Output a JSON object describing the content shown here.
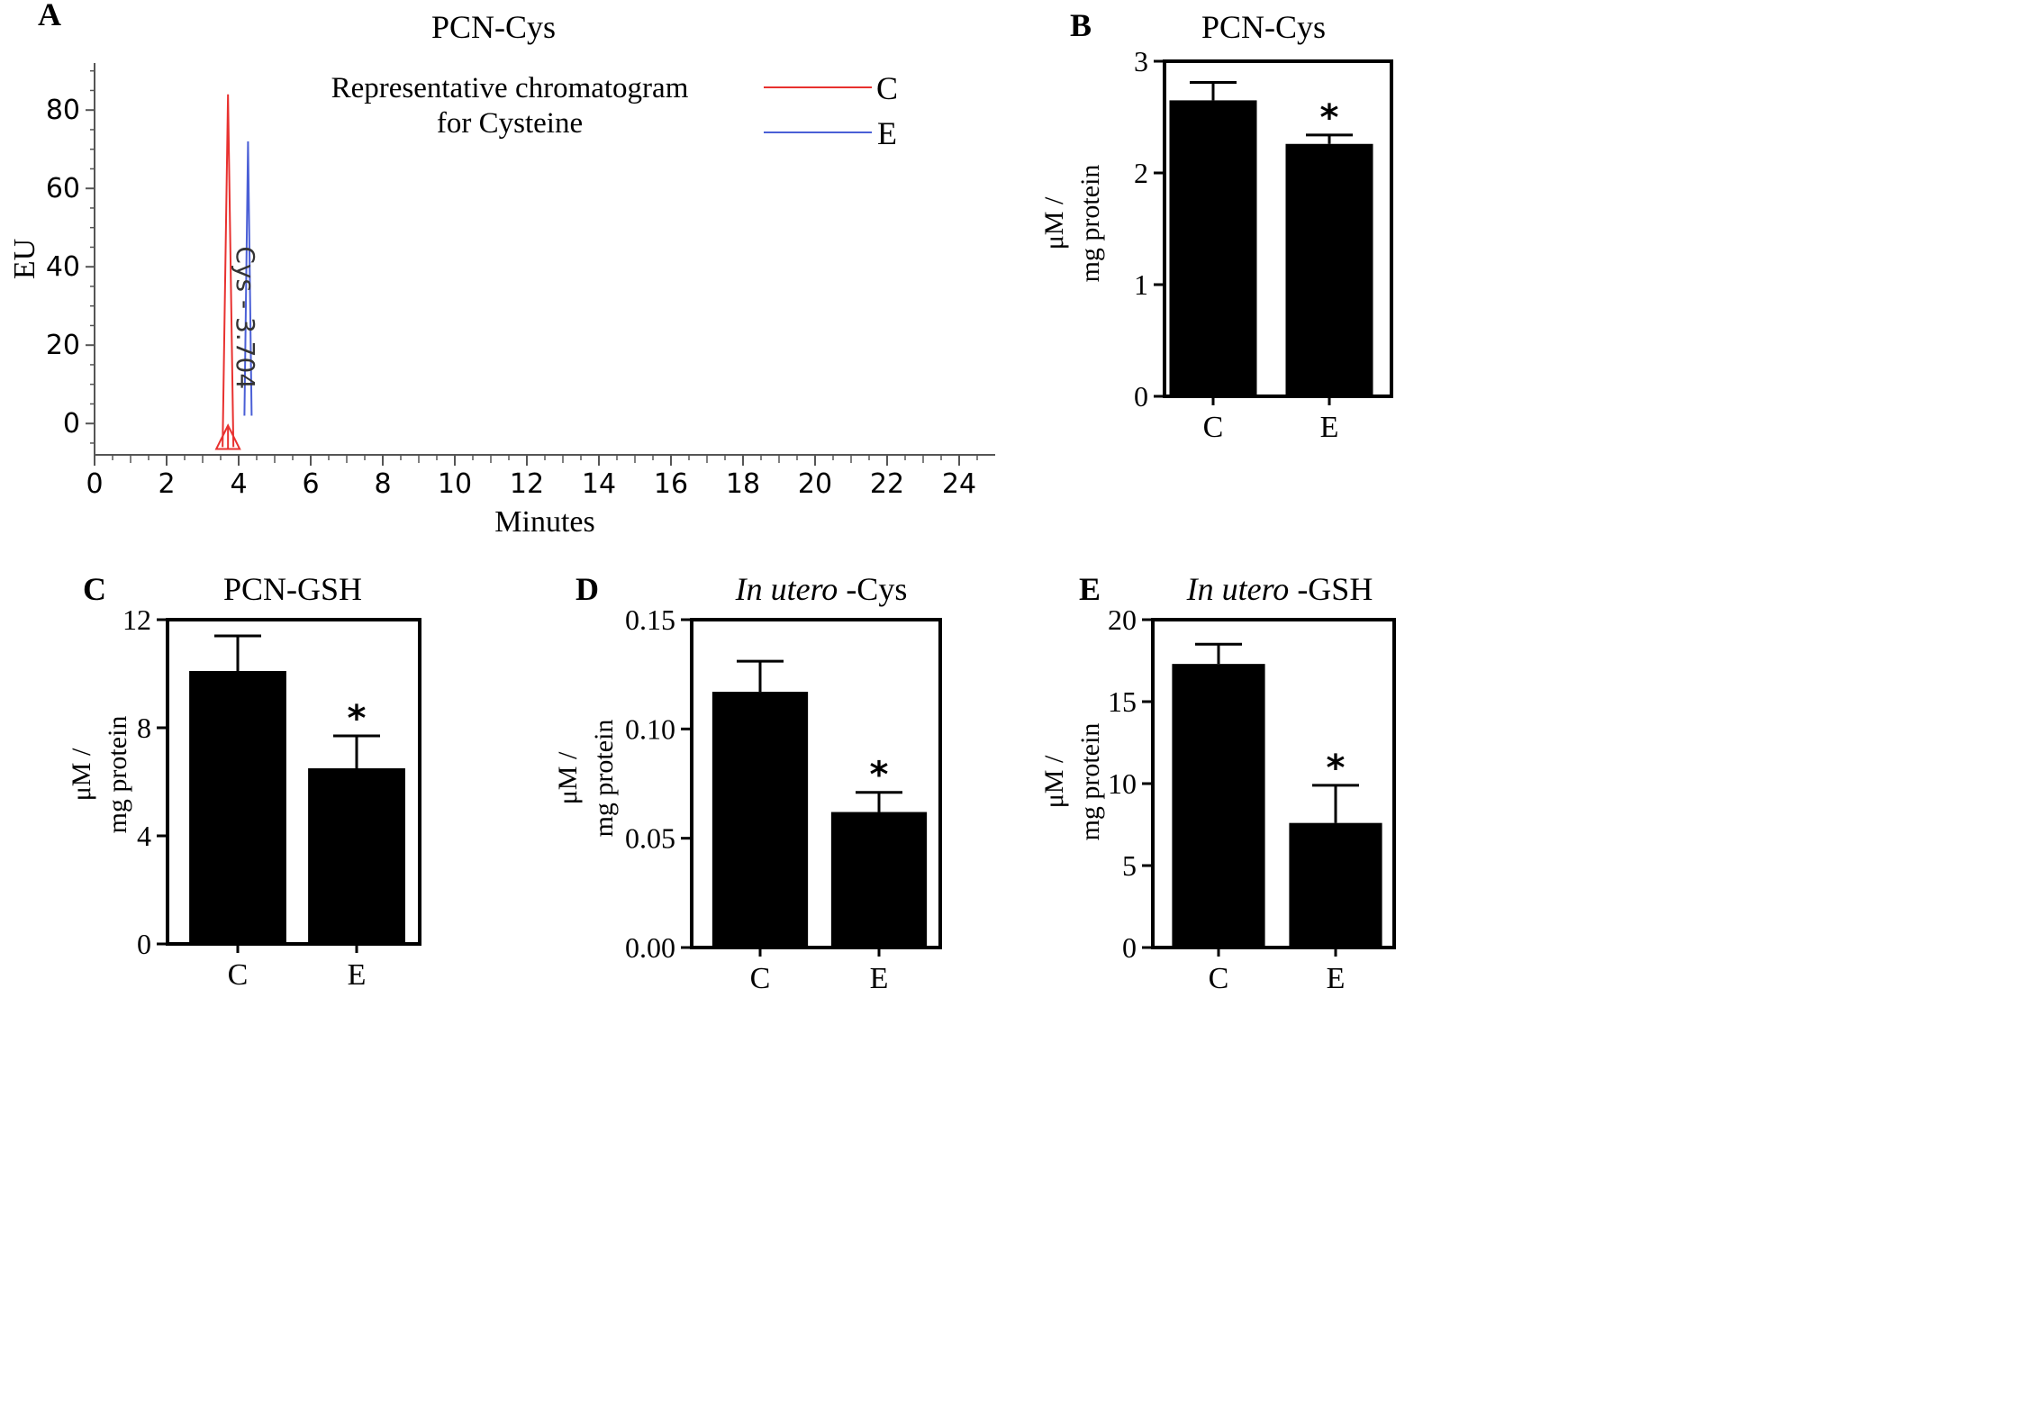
{
  "chart_data": [
    {
      "panel": "A",
      "type": "line",
      "title": "PCN-Cys",
      "xlabel": "Minutes",
      "ylabel": "EU",
      "xlim": [
        0,
        25
      ],
      "ylim": [
        -8,
        92
      ],
      "xticks": [
        "0",
        "2",
        "4",
        "6",
        "8",
        "10",
        "12",
        "14",
        "16",
        "18",
        "20",
        "22",
        "24"
      ],
      "yticks": [
        "0",
        "20",
        "40",
        "60",
        "80"
      ],
      "annotation": [
        "Representative chromatogram",
        "for Cysteine"
      ],
      "peak_label": "Cys - 3.704",
      "legend_position": "top-right",
      "series": [
        {
          "name": "C",
          "color": "#e8312f",
          "peak_x": 3.704,
          "peak_y": 84,
          "base_y": -6
        },
        {
          "name": "E",
          "color": "#4a5fd6",
          "peak_x": 4.26,
          "peak_y": 72,
          "base_y": 2
        }
      ]
    },
    {
      "panel": "B",
      "type": "bar",
      "title": "PCN-Cys",
      "ylabel": [
        "μM /",
        "mg protein"
      ],
      "categories": [
        "C",
        "E"
      ],
      "values": [
        2.65,
        2.26
      ],
      "errors": [
        0.16,
        0.08
      ],
      "significance": [
        "",
        "*"
      ],
      "ylim": [
        0,
        3
      ],
      "yticks": [
        "0",
        "1",
        "2",
        "3"
      ]
    },
    {
      "panel": "C",
      "type": "bar",
      "title": "PCN-GSH",
      "ylabel": [
        "μM /",
        "mg protein"
      ],
      "categories": [
        "C",
        "E"
      ],
      "values": [
        10.1,
        6.5
      ],
      "errors": [
        1.3,
        1.2
      ],
      "significance": [
        "",
        "*"
      ],
      "ylim": [
        0,
        12
      ],
      "yticks": [
        "0",
        "4",
        "8",
        "12"
      ]
    },
    {
      "panel": "D",
      "type": "bar",
      "title_italic": "In utero",
      "title_rest": " -Cys",
      "ylabel": [
        "μM /",
        "mg protein"
      ],
      "categories": [
        "C",
        "E"
      ],
      "values": [
        0.117,
        0.062
      ],
      "errors": [
        0.014,
        0.009
      ],
      "significance": [
        "",
        "*"
      ],
      "ylim": [
        0,
        0.15
      ],
      "yticks": [
        "0.00",
        "0.05",
        "0.10",
        "0.15"
      ]
    },
    {
      "panel": "E",
      "type": "bar",
      "title_italic": "In utero",
      "title_rest": " -GSH",
      "ylabel": [
        "μM /",
        "mg protein"
      ],
      "categories": [
        "C",
        "E"
      ],
      "values": [
        17.3,
        7.6
      ],
      "errors": [
        1.2,
        2.3
      ],
      "significance": [
        "",
        "*"
      ],
      "ylim": [
        0,
        20
      ],
      "yticks": [
        "0",
        "5",
        "10",
        "15",
        "20"
      ]
    }
  ]
}
